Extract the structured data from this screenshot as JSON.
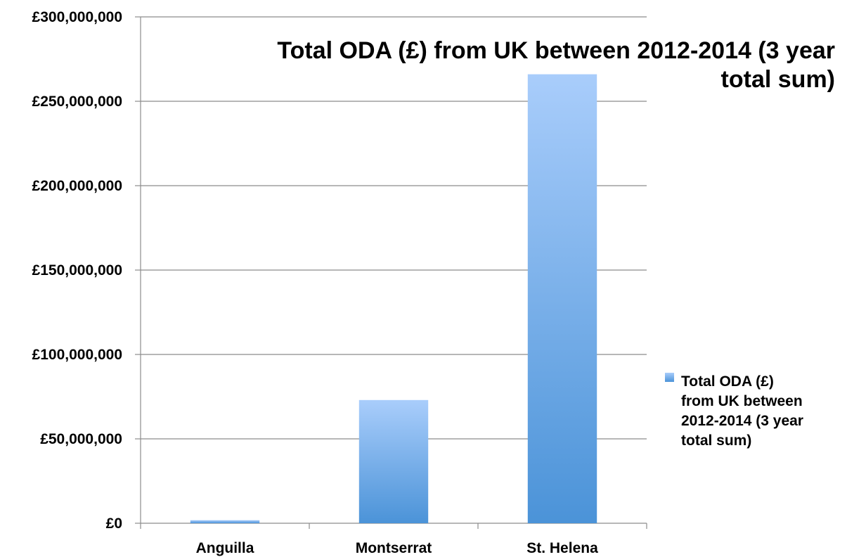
{
  "chart_data": {
    "type": "bar",
    "title": "Total ODA (£) from UK between 2012-2014 (3 year total sum)",
    "title_lines": [
      "Total ODA (£) from UK between 2012-2014 (3 year",
      "total sum)"
    ],
    "categories": [
      "Anguilla",
      "Montserrat",
      "St. Helena"
    ],
    "series": [
      {
        "name": "Total ODA (£) from UK between 2012-2014 (3 year total sum)",
        "values": [
          1800000,
          73000000,
          266000000
        ]
      }
    ],
    "legend_lines": [
      "Total ODA (£)",
      "from UK between",
      "2012-2014 (3 year",
      "total sum)"
    ],
    "ylim": [
      0,
      300000000
    ],
    "ytick_labels": [
      "£0",
      "£50,000,000",
      "£100,000,000",
      "£150,000,000",
      "£200,000,000",
      "£250,000,000",
      "£300,000,000"
    ],
    "ytick_values": [
      0,
      50000000,
      100000000,
      150000000,
      200000000,
      250000000,
      300000000
    ],
    "xlabel": "",
    "ylabel": "",
    "grid": true,
    "legend_position": "right",
    "colors": {
      "bar_top": "#a9cdfb",
      "bar_bottom": "#4b93d8",
      "grid": "#8c8c8c",
      "axis": "#8c8c8c"
    }
  }
}
